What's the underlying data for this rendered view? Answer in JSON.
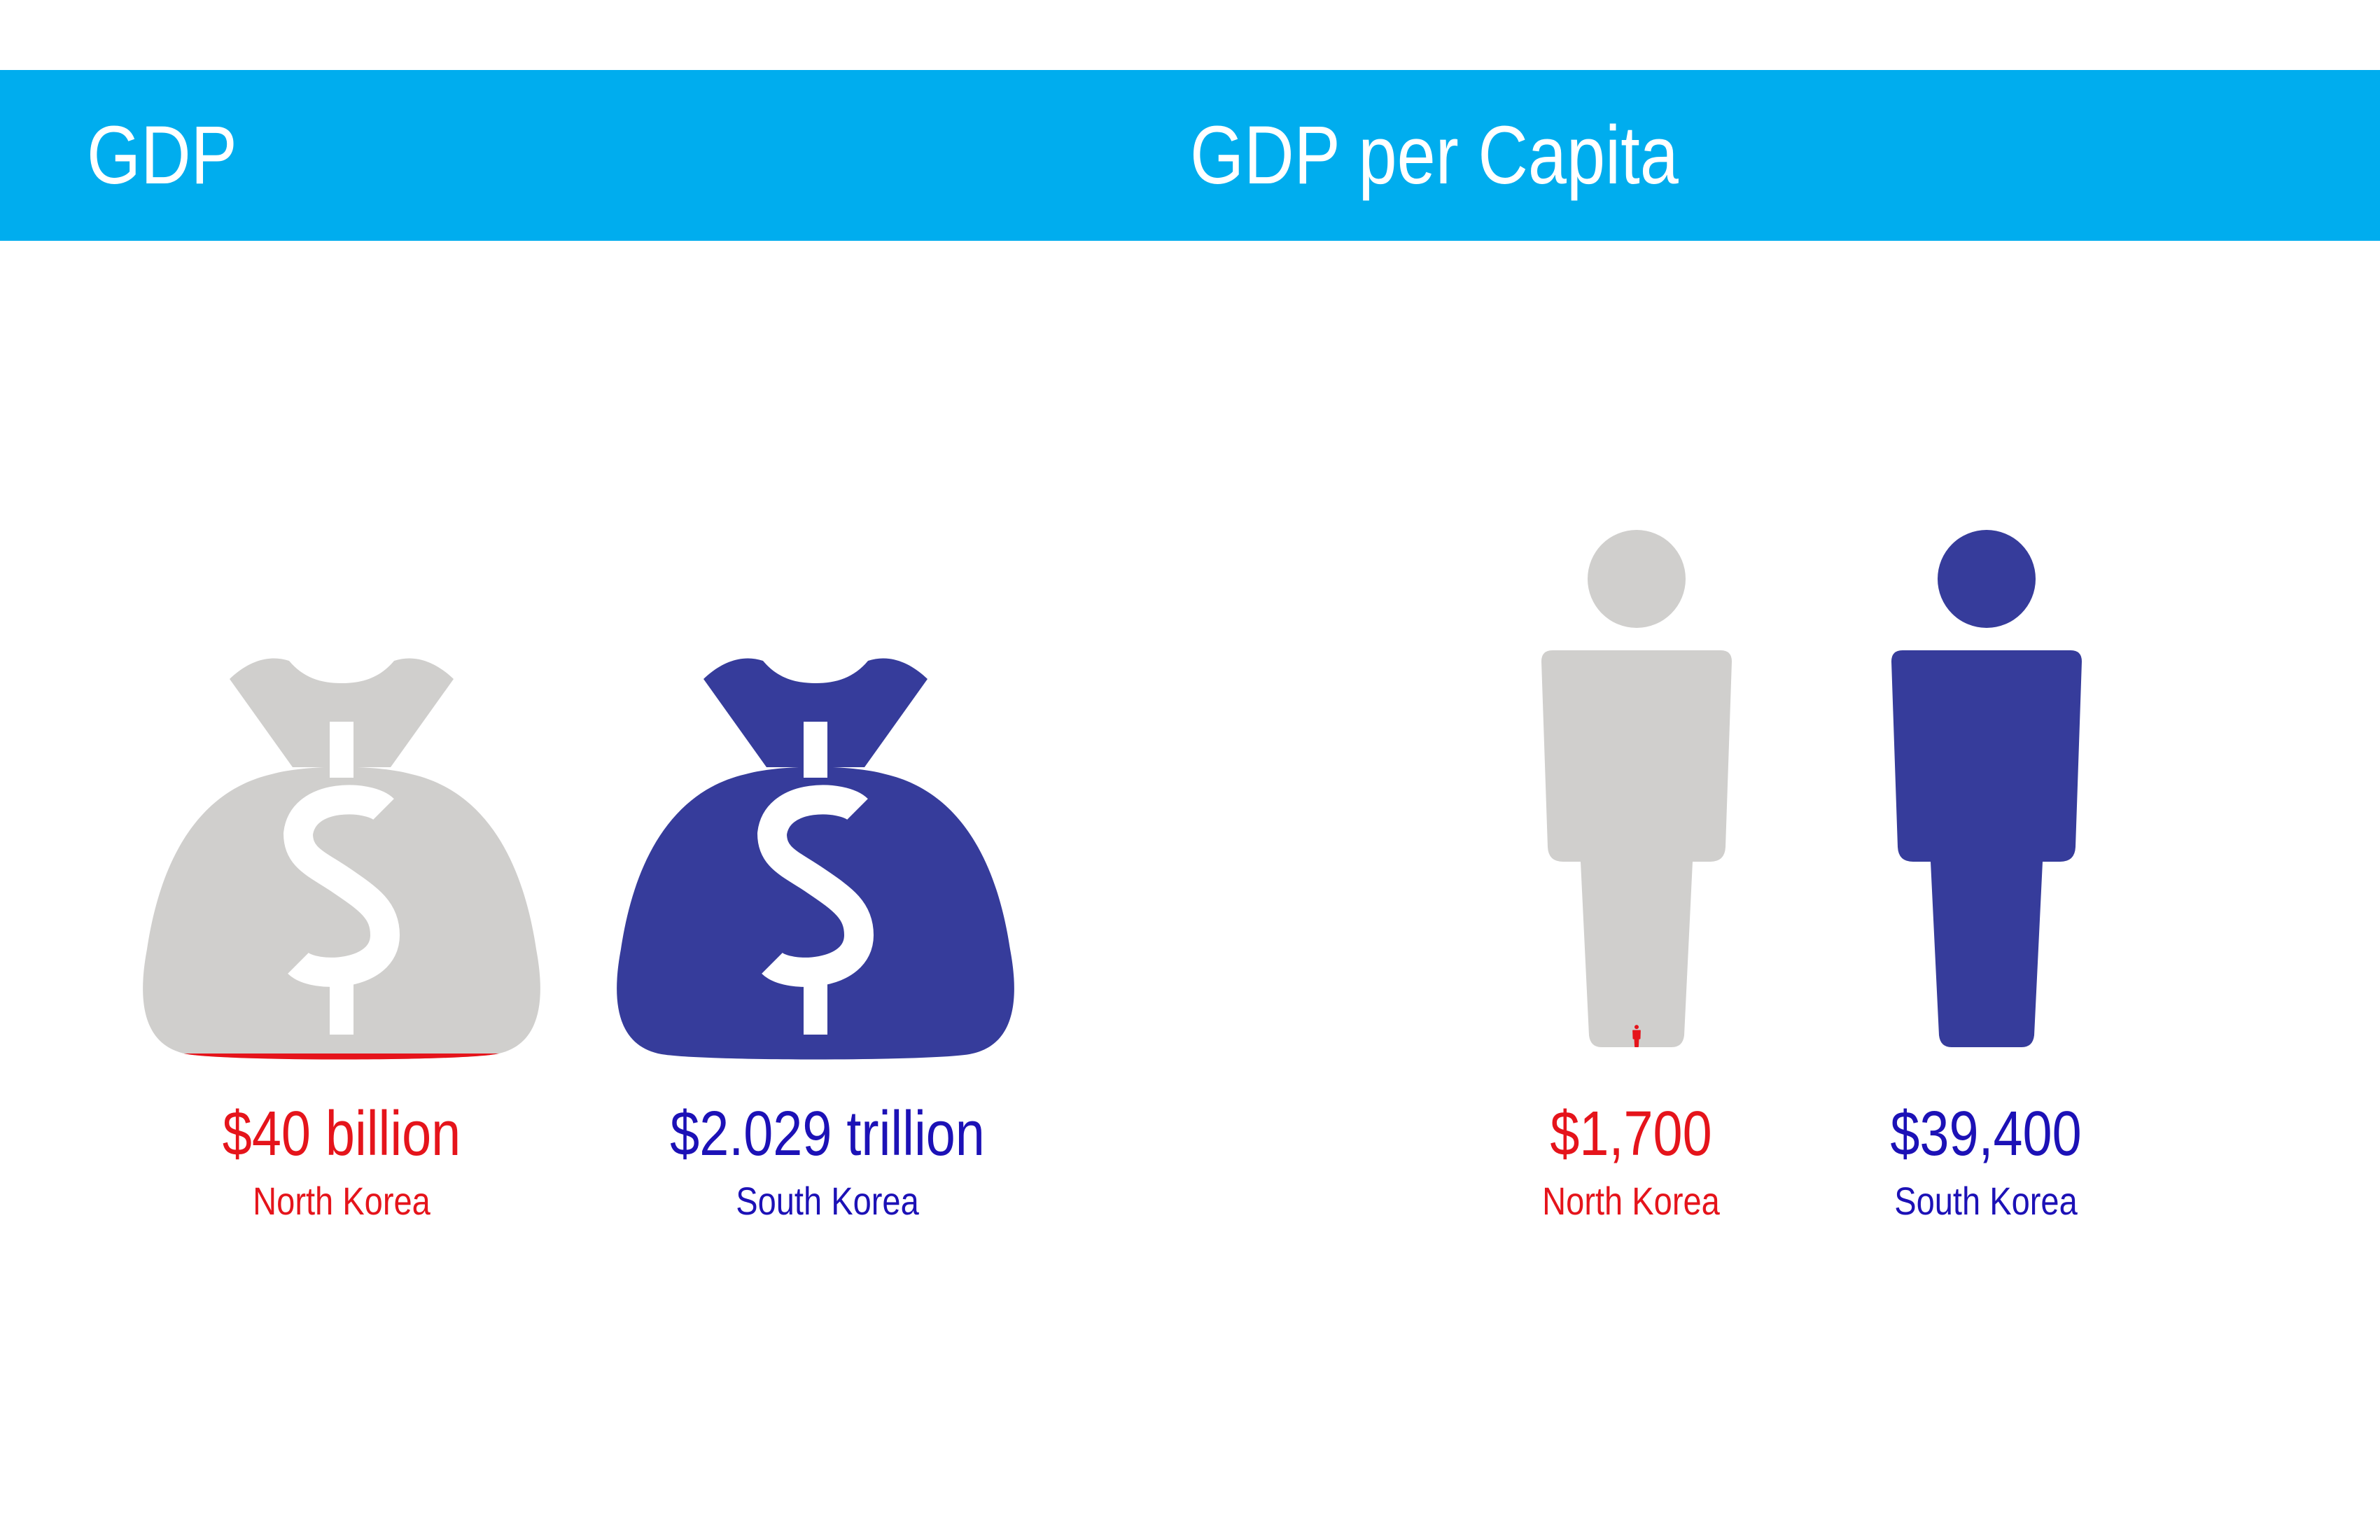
{
  "header": {
    "gdp_title": "GDP",
    "gdp_per_capita_title": "GDP per Capita"
  },
  "colors": {
    "header_bg": "#00adee",
    "header_text": "#ffffff",
    "north_korea": "#e5141b",
    "south_korea": "#1c11b6",
    "icon_gray": "#d0cfcd",
    "icon_navy": "#363c9b"
  },
  "chart_data": [
    {
      "type": "pictogram",
      "title": "GDP",
      "icon": "money-bag-icon",
      "unit": "USD",
      "series": [
        {
          "name": "North Korea",
          "value": 40000000000,
          "label": "$40 billion"
        },
        {
          "name": "South Korea",
          "value": 2029000000000,
          "label": "$2.029 trillion"
        }
      ]
    },
    {
      "type": "pictogram",
      "title": "GDP per Capita",
      "icon": "person-icon",
      "unit": "USD",
      "series": [
        {
          "name": "North Korea",
          "value": 1700,
          "label": "$1,700"
        },
        {
          "name": "South Korea",
          "value": 39400,
          "label": "$39,400"
        }
      ]
    }
  ]
}
